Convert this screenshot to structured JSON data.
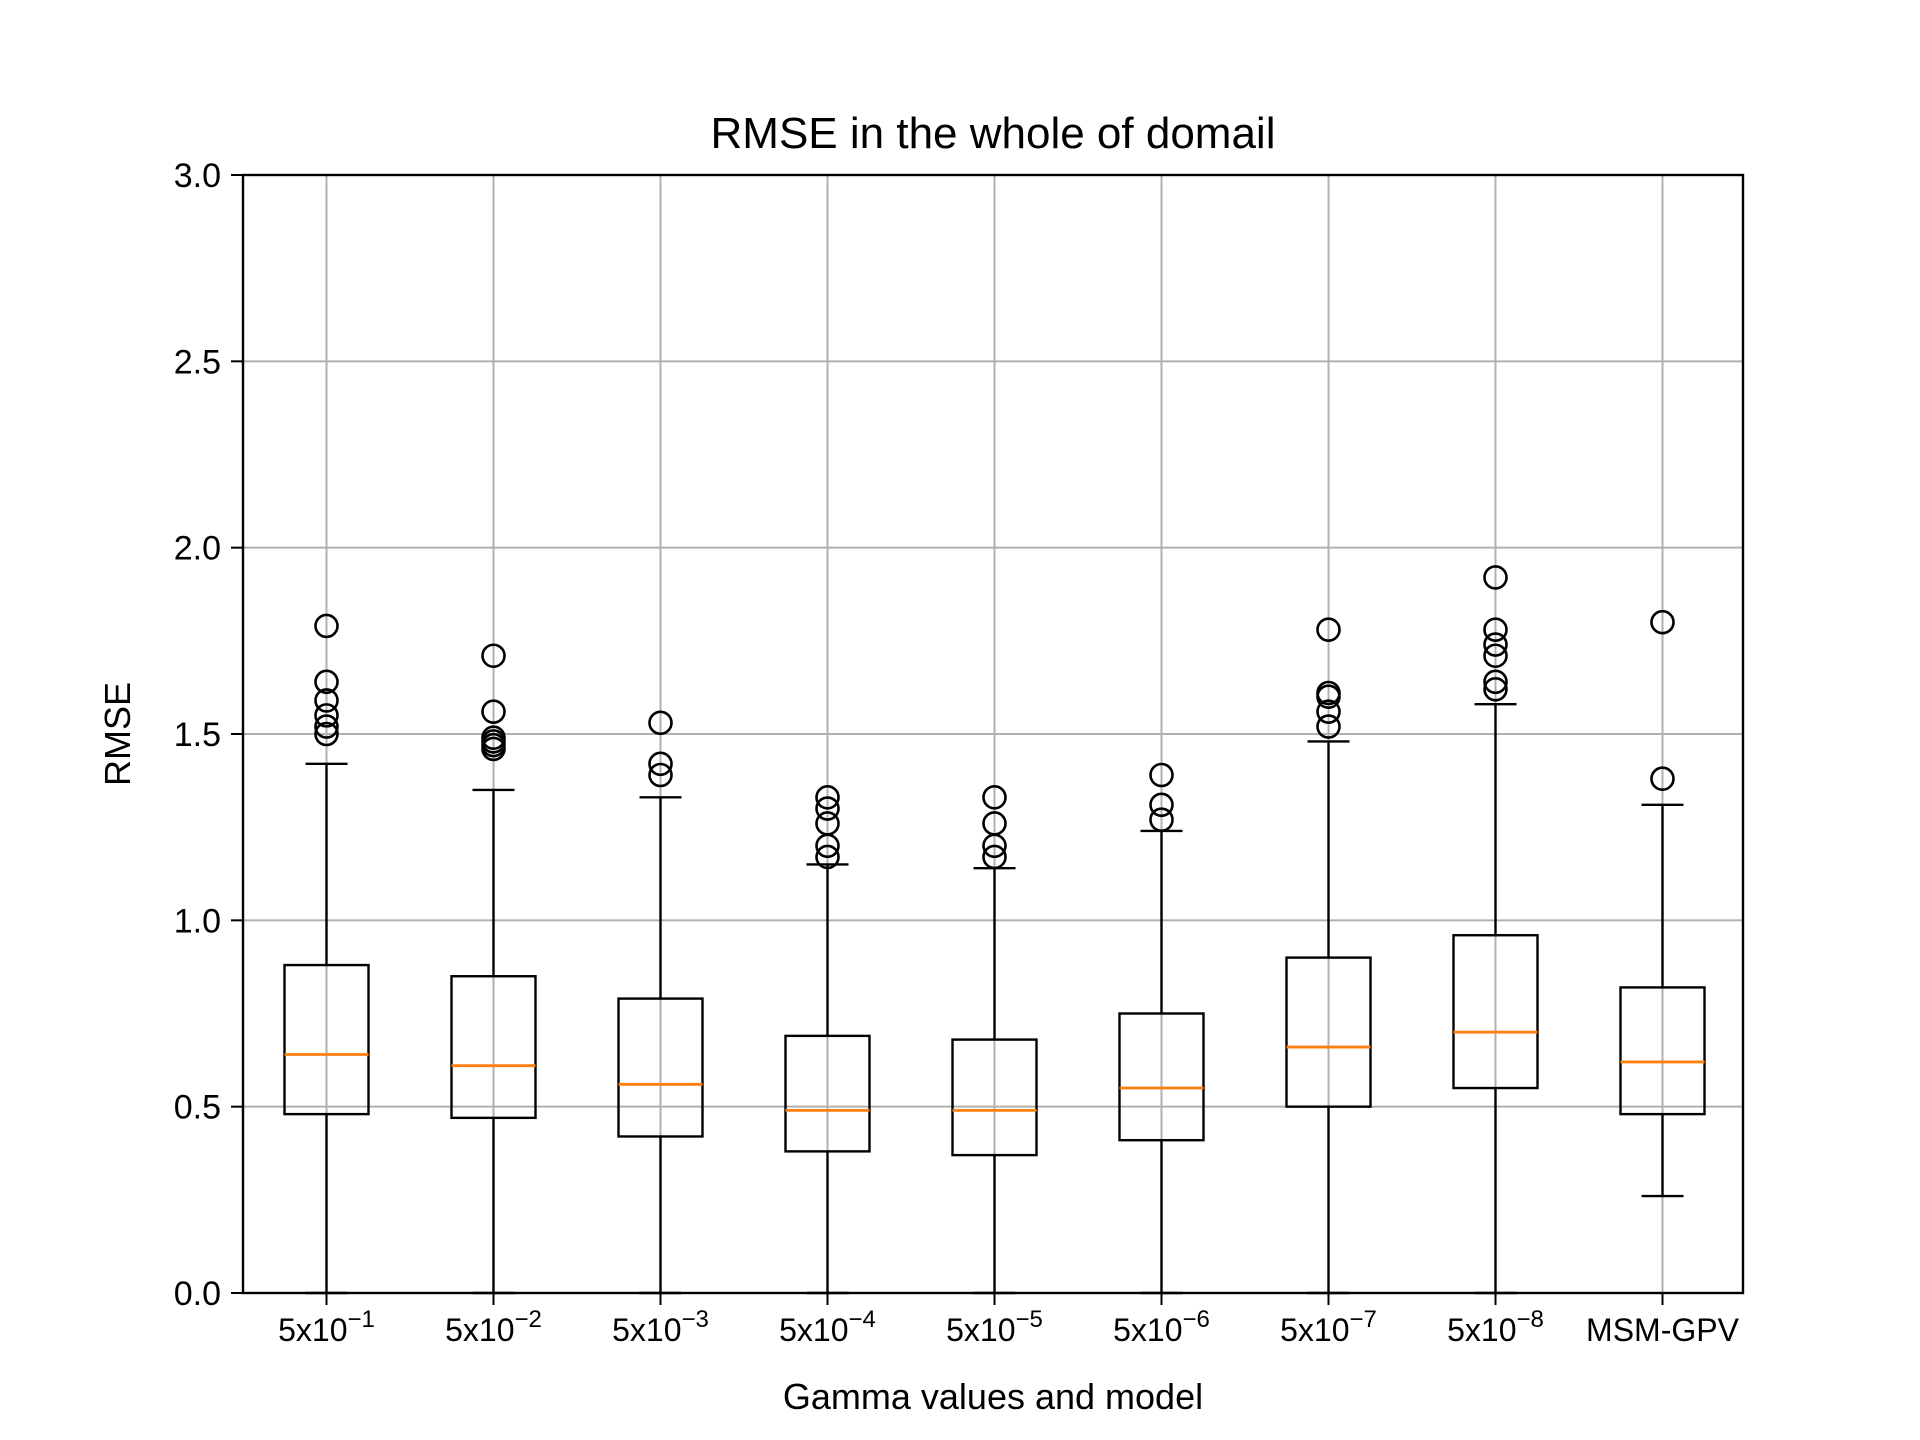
{
  "chart_data": {
    "type": "box",
    "title": "RMSE in the whole of domail",
    "xlabel": "Gamma values and model",
    "ylabel": "RMSE",
    "ylim": [
      0.0,
      3.0
    ],
    "yticks": [
      "0.0",
      "0.5",
      "1.0",
      "1.5",
      "2.0",
      "2.5",
      "3.0"
    ],
    "grid": true,
    "colors": {
      "box": "#000000",
      "median": "#ff7f0e",
      "grid": "#b0b0b0"
    },
    "categories": [
      {
        "base": "5x10",
        "exp": "−1"
      },
      {
        "base": "5x10",
        "exp": "−2"
      },
      {
        "base": "5x10",
        "exp": "−3"
      },
      {
        "base": "5x10",
        "exp": "−4"
      },
      {
        "base": "5x10",
        "exp": "−5"
      },
      {
        "base": "5x10",
        "exp": "−6"
      },
      {
        "base": "5x10",
        "exp": "−7"
      },
      {
        "base": "5x10",
        "exp": "−8"
      },
      {
        "base": "MSM-GPV",
        "exp": ""
      }
    ],
    "boxes": [
      {
        "whisker_low": 0.0,
        "q1": 0.48,
        "median": 0.64,
        "q3": 0.88,
        "whisker_high": 1.42,
        "outliers": [
          1.5,
          1.52,
          1.55,
          1.59,
          1.64,
          1.79
        ]
      },
      {
        "whisker_low": 0.0,
        "q1": 0.47,
        "median": 0.61,
        "q3": 0.85,
        "whisker_high": 1.35,
        "outliers": [
          1.46,
          1.47,
          1.48,
          1.49,
          1.56,
          1.71
        ]
      },
      {
        "whisker_low": 0.0,
        "q1": 0.42,
        "median": 0.56,
        "q3": 0.79,
        "whisker_high": 1.33,
        "outliers": [
          1.39,
          1.42,
          1.53
        ]
      },
      {
        "whisker_low": 0.0,
        "q1": 0.38,
        "median": 0.49,
        "q3": 0.69,
        "whisker_high": 1.15,
        "outliers": [
          1.17,
          1.2,
          1.26,
          1.3,
          1.33
        ]
      },
      {
        "whisker_low": 0.0,
        "q1": 0.37,
        "median": 0.49,
        "q3": 0.68,
        "whisker_high": 1.14,
        "outliers": [
          1.17,
          1.2,
          1.26,
          1.33
        ]
      },
      {
        "whisker_low": 0.0,
        "q1": 0.41,
        "median": 0.55,
        "q3": 0.75,
        "whisker_high": 1.24,
        "outliers": [
          1.27,
          1.31,
          1.39
        ]
      },
      {
        "whisker_low": 0.0,
        "q1": 0.5,
        "median": 0.66,
        "q3": 0.9,
        "whisker_high": 1.48,
        "outliers": [
          1.52,
          1.56,
          1.6,
          1.61,
          1.78
        ]
      },
      {
        "whisker_low": 0.0,
        "q1": 0.55,
        "median": 0.7,
        "q3": 0.96,
        "whisker_high": 1.58,
        "outliers": [
          1.62,
          1.64,
          1.71,
          1.74,
          1.78,
          1.92
        ]
      },
      {
        "whisker_low": 0.26,
        "q1": 0.48,
        "median": 0.62,
        "q3": 0.82,
        "whisker_high": 1.31,
        "outliers": [
          1.38,
          1.8
        ]
      }
    ]
  }
}
